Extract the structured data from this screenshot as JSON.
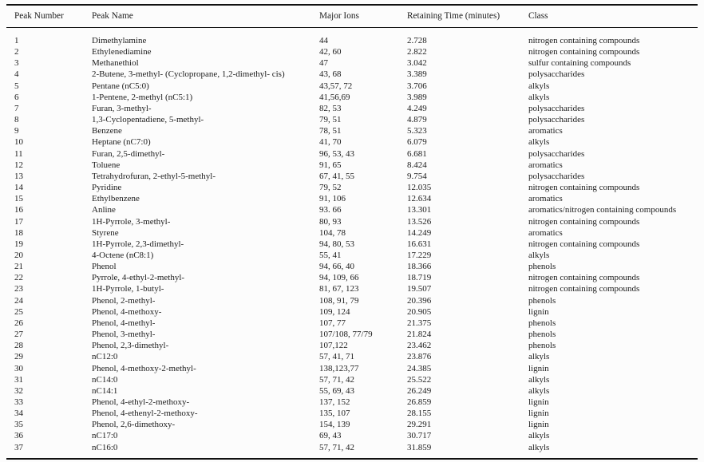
{
  "table": {
    "headers": [
      "Peak Number",
      "Peak Name",
      "Major Ions",
      "Retaining Time (minutes)",
      "Class"
    ],
    "rows": [
      {
        "peak_number": "1",
        "peak_name": "Dimethylamine",
        "major_ions": "44",
        "retaining_time": "2.728",
        "class": "nitrogen containing compounds"
      },
      {
        "peak_number": "2",
        "peak_name": "Ethylenediamine",
        "major_ions": "42, 60",
        "retaining_time": "2.822",
        "class": "nitrogen containing compounds"
      },
      {
        "peak_number": "3",
        "peak_name": "Methanethiol",
        "major_ions": "47",
        "retaining_time": "3.042",
        "class": "sulfur containing compounds"
      },
      {
        "peak_number": "4",
        "peak_name": "2-Butene, 3-methyl- (Cyclopropane, 1,2-dimethyl- cis)",
        "major_ions": "43, 68",
        "retaining_time": "3.389",
        "class": "polysaccharides"
      },
      {
        "peak_number": "5",
        "peak_name": "Pentane (nC5:0)",
        "major_ions": "43,57, 72",
        "retaining_time": "3.706",
        "class": "alkyls"
      },
      {
        "peak_number": "6",
        "peak_name": "1-Pentene, 2-methyl (nC5:1)",
        "major_ions": "41,56,69",
        "retaining_time": "3.989",
        "class": "alkyls"
      },
      {
        "peak_number": "7",
        "peak_name": "Furan, 3-methyl-",
        "major_ions": "82, 53",
        "retaining_time": "4.249",
        "class": "polysaccharides"
      },
      {
        "peak_number": "8",
        "peak_name": "1,3-Cyclopentadiene, 5-methyl-",
        "major_ions": "79, 51",
        "retaining_time": "4.879",
        "class": "polysaccharides"
      },
      {
        "peak_number": "9",
        "peak_name": "Benzene",
        "major_ions": "78, 51",
        "retaining_time": "5.323",
        "class": "aromatics"
      },
      {
        "peak_number": "10",
        "peak_name": "Heptane (nC7:0)",
        "major_ions": "41, 70",
        "retaining_time": "6.079",
        "class": "alkyls"
      },
      {
        "peak_number": "11",
        "peak_name": "Furan, 2,5-dimethyl-",
        "major_ions": "96, 53, 43",
        "retaining_time": "6.681",
        "class": "polysaccharides"
      },
      {
        "peak_number": "12",
        "peak_name": "Toluene",
        "major_ions": "91, 65",
        "retaining_time": "8.424",
        "class": "aromatics"
      },
      {
        "peak_number": "13",
        "peak_name": "Tetrahydrofuran, 2-ethyl-5-methyl-",
        "major_ions": "67, 41, 55",
        "retaining_time": "9.754",
        "class": "polysaccharides"
      },
      {
        "peak_number": "14",
        "peak_name": "Pyridine",
        "major_ions": "79, 52",
        "retaining_time": "12.035",
        "class": "nitrogen containing compounds"
      },
      {
        "peak_number": "15",
        "peak_name": "Ethylbenzene",
        "major_ions": "91, 106",
        "retaining_time": "12.634",
        "class": "aromatics"
      },
      {
        "peak_number": "16",
        "peak_name": "Anline",
        "major_ions": "93. 66",
        "retaining_time": "13.301",
        "class": "aromatics/nitrogen containing compounds"
      },
      {
        "peak_number": "17",
        "peak_name": "1H-Pyrrole, 3-methyl-",
        "major_ions": "80, 93",
        "retaining_time": "13.526",
        "class": "nitrogen containing compounds"
      },
      {
        "peak_number": "18",
        "peak_name": "Styrene",
        "major_ions": "104, 78",
        "retaining_time": "14.249",
        "class": "aromatics"
      },
      {
        "peak_number": "19",
        "peak_name": "1H-Pyrrole, 2,3-dimethyl-",
        "major_ions": "94, 80, 53",
        "retaining_time": "16.631",
        "class": "nitrogen containing compounds"
      },
      {
        "peak_number": "20",
        "peak_name": "4-Octene (nC8:1)",
        "major_ions": "55, 41",
        "retaining_time": "17.229",
        "class": "alkyls"
      },
      {
        "peak_number": "21",
        "peak_name": "Phenol",
        "major_ions": "94, 66, 40",
        "retaining_time": "18.366",
        "class": "phenols"
      },
      {
        "peak_number": "22",
        "peak_name": "Pyrrole, 4-ethyl-2-methyl-",
        "major_ions": "94, 109, 66",
        "retaining_time": "18.719",
        "class": "nitrogen containing compounds"
      },
      {
        "peak_number": "23",
        "peak_name": "1H-Pyrrole, 1-butyl-",
        "major_ions": "81, 67, 123",
        "retaining_time": "19.507",
        "class": "nitrogen containing compounds"
      },
      {
        "peak_number": "24",
        "peak_name": "Phenol, 2-methyl-",
        "major_ions": "108, 91, 79",
        "retaining_time": "20.396",
        "class": "phenols"
      },
      {
        "peak_number": "25",
        "peak_name": "Phenol, 4-methoxy-",
        "major_ions": "109, 124",
        "retaining_time": "20.905",
        "class": "lignin"
      },
      {
        "peak_number": "26",
        "peak_name": "Phenol, 4-methyl-",
        "major_ions": "107, 77",
        "retaining_time": "21.375",
        "class": "phenols"
      },
      {
        "peak_number": "27",
        "peak_name": "Phenol, 3-methyl-",
        "major_ions": "107/108, 77/79",
        "retaining_time": "21.824",
        "class": "phenols"
      },
      {
        "peak_number": "28",
        "peak_name": "Phenol, 2,3-dimethyl-",
        "major_ions": "107,122",
        "retaining_time": "23.462",
        "class": "phenols"
      },
      {
        "peak_number": "29",
        "peak_name": "nC12:0",
        "major_ions": "57, 41, 71",
        "retaining_time": "23.876",
        "class": "alkyls"
      },
      {
        "peak_number": "30",
        "peak_name": "Phenol, 4-methoxy-2-methyl-",
        "major_ions": "138,123,77",
        "retaining_time": "24.385",
        "class": "lignin"
      },
      {
        "peak_number": "31",
        "peak_name": "nC14:0",
        "major_ions": "57, 71, 42",
        "retaining_time": "25.522",
        "class": "alkyls"
      },
      {
        "peak_number": "32",
        "peak_name": "nC14:1",
        "major_ions": "55, 69, 43",
        "retaining_time": "26.249",
        "class": "alkyls"
      },
      {
        "peak_number": "33",
        "peak_name": "Phenol, 4-ethyl-2-methoxy-",
        "major_ions": "137, 152",
        "retaining_time": "26.859",
        "class": "lignin"
      },
      {
        "peak_number": "34",
        "peak_name": "Phenol, 4-ethenyl-2-methoxy-",
        "major_ions": "135, 107",
        "retaining_time": "28.155",
        "class": "lignin"
      },
      {
        "peak_number": "35",
        "peak_name": "Phenol, 2,6-dimethoxy-",
        "major_ions": "154, 139",
        "retaining_time": "29.291",
        "class": "lignin"
      },
      {
        "peak_number": "36",
        "peak_name": "nC17:0",
        "major_ions": "69, 43",
        "retaining_time": "30.717",
        "class": "alkyls"
      },
      {
        "peak_number": "37",
        "peak_name": "nC16:0",
        "major_ions": "57, 71, 42",
        "retaining_time": "31.859",
        "class": "alkyls"
      }
    ]
  },
  "colors": {
    "text": "#1b1b1b",
    "rule": "#111111",
    "background": "#fcfcfc"
  }
}
